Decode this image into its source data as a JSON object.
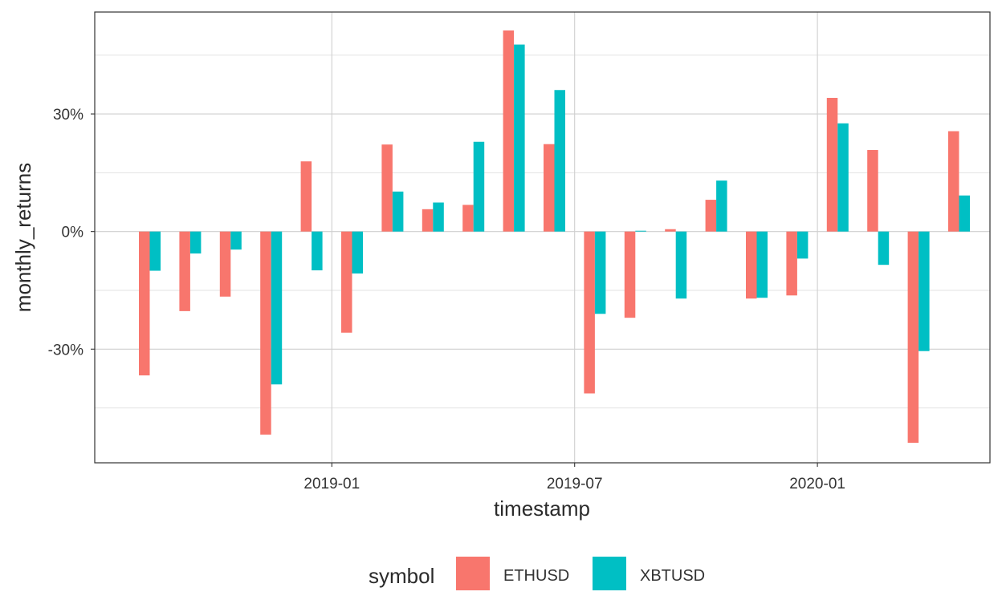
{
  "chart_data": {
    "type": "bar",
    "xlabel": "timestamp",
    "ylabel": "monthly_returns",
    "x_tick_labels": [
      "2019-01",
      "2019-07",
      "2020-01"
    ],
    "y_tick_labels": [
      "-30%",
      "0%",
      "30%"
    ],
    "y_ticks": [
      -30,
      0,
      30
    ],
    "ylim": [
      -59,
      56
    ],
    "grid": true,
    "legend": {
      "title": "symbol",
      "position": "bottom"
    },
    "categories": [
      "2018-08",
      "2018-09",
      "2018-10",
      "2018-11",
      "2018-12",
      "2019-01",
      "2019-02",
      "2019-03",
      "2019-04",
      "2019-05",
      "2019-06",
      "2019-07",
      "2019-08",
      "2019-09",
      "2019-10",
      "2019-11",
      "2019-12",
      "2020-01",
      "2020-02",
      "2020-03",
      "2020-04"
    ],
    "series": [
      {
        "name": "ETHUSD",
        "color": "#F8766D",
        "values": [
          -36.7,
          -20.3,
          -16.6,
          -51.8,
          17.9,
          -25.8,
          22.2,
          5.7,
          6.8,
          51.3,
          22.3,
          -41.3,
          -22.0,
          0.6,
          8.1,
          -17.1,
          -16.3,
          34.1,
          20.8,
          -53.9,
          25.6
        ]
      },
      {
        "name": "XBTUSD",
        "color": "#00BFC4",
        "values": [
          -10.0,
          -5.6,
          -4.6,
          -39.0,
          -9.9,
          -10.7,
          10.2,
          7.4,
          22.9,
          47.7,
          36.1,
          -21.0,
          0.2,
          -17.1,
          13.0,
          -16.9,
          -6.9,
          27.6,
          -8.5,
          -30.5,
          9.2
        ]
      }
    ]
  }
}
